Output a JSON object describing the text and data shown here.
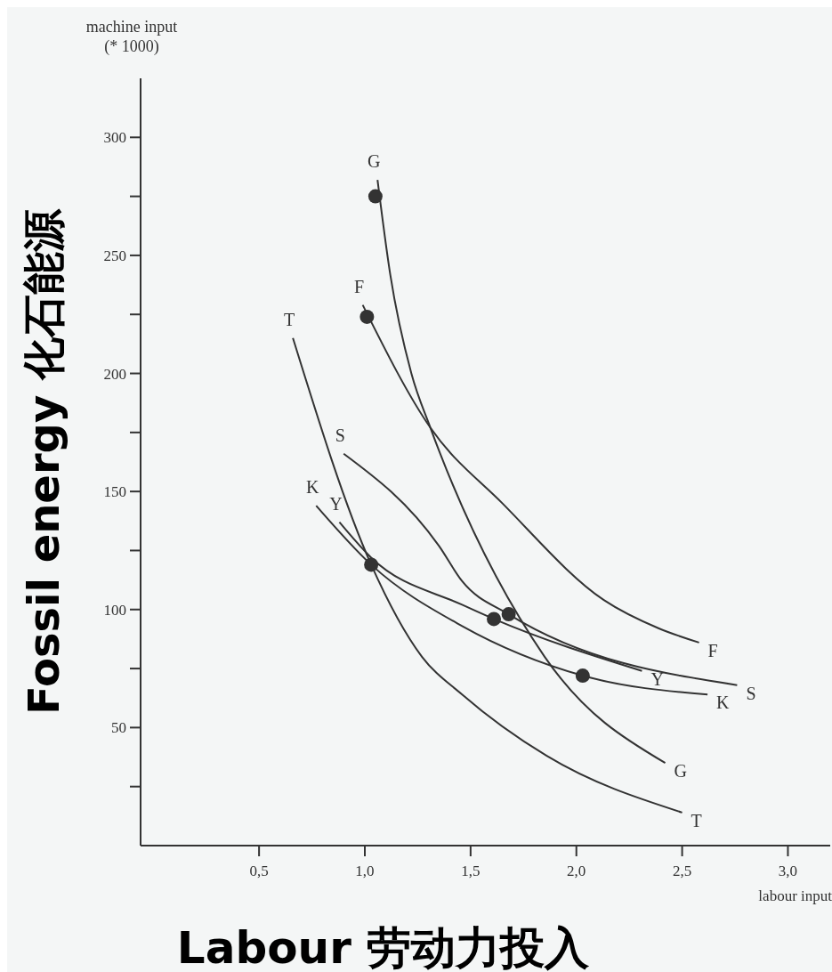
{
  "chart_data": {
    "type": "line",
    "xlabel": "Labour 劳动力投入",
    "ylabel": "Fossil energy 化石能源",
    "annotations": [
      "machine input\n(* 1000)",
      "labour input"
    ],
    "xlim": [
      -0.06,
      3.2
    ],
    "ylim": [
      0,
      325
    ],
    "xticks": [
      {
        "value": 0.5,
        "label": "0,5"
      },
      {
        "value": 1,
        "label": "1,0"
      },
      {
        "value": 1.5,
        "label": "1,5"
      },
      {
        "value": 2,
        "label": "2,0"
      },
      {
        "value": 2.5,
        "label": "2,5"
      },
      {
        "value": 3,
        "label": "3,0"
      }
    ],
    "yticks": [
      {
        "value": 25,
        "label": null
      },
      50,
      {
        "value": 75,
        "label": null
      },
      100,
      {
        "value": 125,
        "label": null
      },
      150,
      {
        "value": 175,
        "label": null
      },
      200,
      {
        "value": 225,
        "label": null
      },
      250,
      {
        "value": 275,
        "label": null
      },
      300
    ],
    "marker": "none",
    "line_style": "solid",
    "grid": false,
    "series": [
      {
        "name": "G",
        "color": "#333333",
        "x": [
          1.06,
          1.12,
          1.22,
          1.31,
          1.85,
          2.42
        ],
        "values": [
          282,
          242,
          200,
          177,
          80,
          35
        ]
      },
      {
        "name": "F",
        "color": "#333333",
        "x": [
          0.99,
          1.31,
          1.65,
          2.13,
          2.39,
          2.58
        ],
        "values": [
          229,
          177,
          145,
          104,
          92,
          86
        ]
      },
      {
        "name": "T",
        "color": "#333333",
        "x": [
          0.66,
          1.03,
          1.27,
          1.46,
          1.86,
          2.5
        ],
        "values": [
          215,
          119,
          80,
          64,
          38,
          14
        ]
      },
      {
        "name": "S",
        "color": "#333333",
        "x": [
          0.9,
          1.35,
          1.46,
          1.68,
          2.76
        ],
        "values": [
          166,
          127,
          112,
          98,
          68
        ]
      },
      {
        "name": "Y",
        "color": "#333333",
        "x": [
          0.88,
          1.03,
          1.46,
          1.61,
          2.31
        ],
        "values": [
          137,
          122,
          102,
          96,
          74
        ]
      },
      {
        "name": "K",
        "color": "#333333",
        "x": [
          0.77,
          1.03,
          1.46,
          2.03,
          2.62
        ],
        "values": [
          144,
          119,
          93,
          72,
          64
        ]
      },
      {
        "type": "scatter",
        "marker": "circle",
        "color": "#333333",
        "x": [
          1.05,
          1.01,
          1.03,
          1.61,
          1.68,
          2.03
        ],
        "values": [
          275,
          224,
          119,
          96,
          98,
          72
        ]
      }
    ]
  }
}
